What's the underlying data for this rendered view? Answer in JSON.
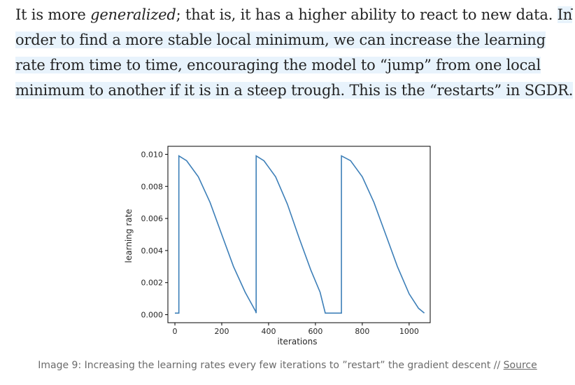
{
  "article": {
    "lines": [
      [
        {
          "t": "It is more ",
          "hl": false
        },
        {
          "t": "generalized",
          "hl": false,
          "em": true
        },
        {
          "t": "; that is, it has a higher ability to react to new data. ",
          "hl": false
        },
        {
          "t": "In",
          "hl": true
        }
      ],
      [
        {
          "t": "order to find a more stable local minimum, we can increase the learning",
          "hl": true
        }
      ],
      [
        {
          "t": "rate from time to time, encouraging the model to “jump” from one local",
          "hl": true
        }
      ],
      [
        {
          "t": "minimum to another if it is in a steep trough. This is the “restarts” in SGDR.",
          "hl": true
        }
      ]
    ]
  },
  "chart_data": {
    "type": "line",
    "title": "",
    "xlabel": "iterations",
    "ylabel": "learning rate",
    "xlim": [
      -30,
      1090
    ],
    "ylim": [
      -0.0005,
      0.0105
    ],
    "xticks": [
      0,
      200,
      400,
      600,
      800,
      1000
    ],
    "xtick_labels": [
      "0",
      "200",
      "400",
      "600",
      "800",
      "1000"
    ],
    "yticks": [
      0.0,
      0.002,
      0.004,
      0.006,
      0.008,
      0.01
    ],
    "ytick_labels": [
      "0.000",
      "0.002",
      "0.004",
      "0.006",
      "0.008",
      "0.010"
    ],
    "grid": false,
    "line_color": "#3d7fb8",
    "series": [
      {
        "x": [
          0,
          17,
          17,
          50,
          100,
          150,
          200,
          250,
          300,
          345,
          347,
          347,
          380,
          430,
          480,
          530,
          580,
          620,
          642,
          711,
          711,
          750,
          800,
          850,
          900,
          950,
          1000,
          1040,
          1065
        ],
        "values": [
          0.0001,
          0.0001,
          0.0099,
          0.0096,
          0.0086,
          0.007,
          0.005,
          0.003,
          0.0014,
          0.0002,
          0.0001,
          0.0099,
          0.0096,
          0.0086,
          0.0069,
          0.0048,
          0.0028,
          0.0014,
          0.0001,
          0.0001,
          0.0099,
          0.0096,
          0.0086,
          0.007,
          0.005,
          0.003,
          0.0013,
          0.0004,
          0.0001
        ]
      }
    ]
  },
  "caption": {
    "text": "Image 9: Increasing the learning rates every few iterations to ”restart” the gradient descent // ",
    "link": "Source"
  }
}
